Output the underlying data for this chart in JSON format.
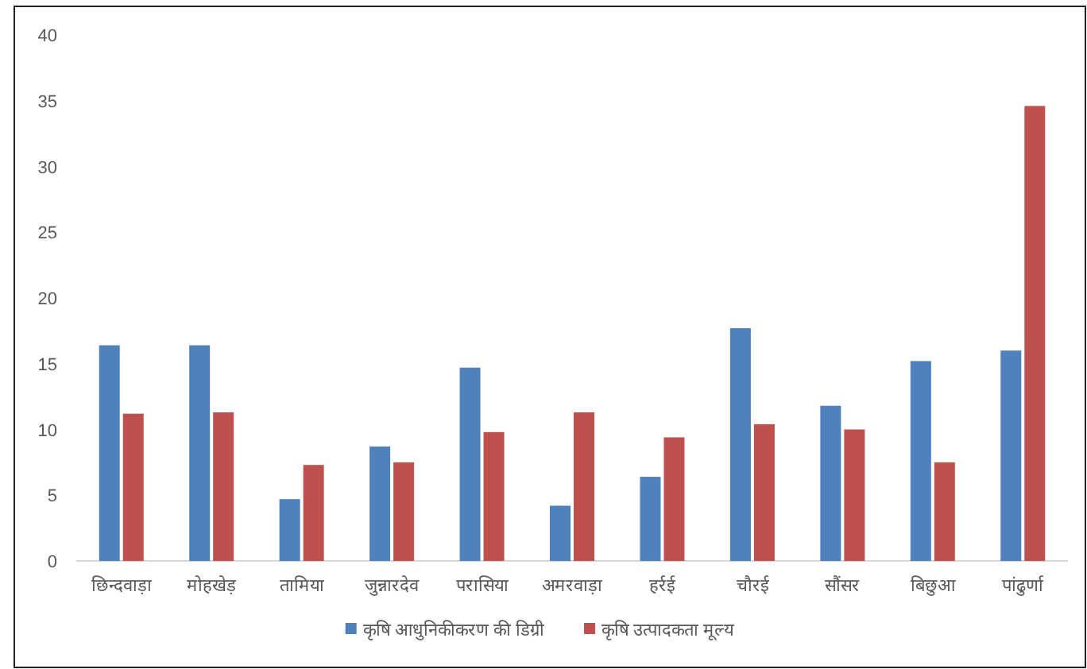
{
  "chart_data": {
    "type": "bar",
    "categories": [
      "छिन्दवाड़ा",
      "मोहखेड़",
      "तामिया",
      "जुन्नारदेव",
      "परासिया",
      "अमरवाड़ा",
      "हर्रई",
      "चौरई",
      "सौंसर",
      "बिछुआ",
      "पांढुर्णा"
    ],
    "series": [
      {
        "name": "कृषि आधुनिकीकरण की डिग्री",
        "color": "#4f81bd",
        "values": [
          16.4,
          16.4,
          4.7,
          8.7,
          14.7,
          4.2,
          6.4,
          17.7,
          11.8,
          15.2,
          16.0
        ]
      },
      {
        "name": "कृषि उत्पादकता मूल्य",
        "color": "#c0504d",
        "values": [
          11.2,
          11.3,
          7.3,
          7.5,
          9.8,
          11.3,
          9.4,
          10.4,
          10.0,
          7.5,
          34.6
        ]
      }
    ],
    "ylim": [
      0,
      40
    ],
    "yticks": [
      0,
      5,
      10,
      15,
      20,
      25,
      30,
      35,
      40
    ],
    "grid": false,
    "legend": "bottom"
  }
}
